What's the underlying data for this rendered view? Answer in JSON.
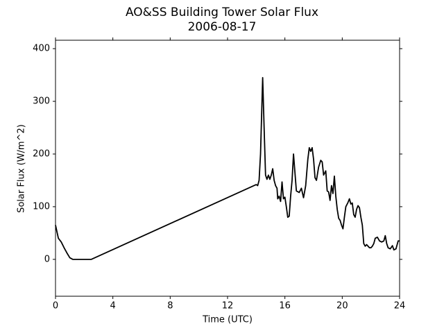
{
  "chart_data": {
    "type": "line",
    "title": "AO&SS Building Tower Solar Flux",
    "subtitle": "2006-08-17",
    "x_label": "Time (UTC)",
    "y_label": "Solar Flux (W/m^2)",
    "xlim": [
      0,
      24
    ],
    "ylim": [
      -70,
      416
    ],
    "xticks": [
      0,
      4,
      8,
      12,
      16,
      20,
      24
    ],
    "yticks": [
      0,
      100,
      200,
      300,
      400
    ],
    "grid": false,
    "x": [
      0,
      0.2,
      0.4,
      0.6,
      0.8,
      1.0,
      1.2,
      1.5,
      2.0,
      2.5,
      14.0,
      14.1,
      14.2,
      14.3,
      14.45,
      14.55,
      14.65,
      14.75,
      14.85,
      14.95,
      15.05,
      15.15,
      15.25,
      15.35,
      15.45,
      15.5,
      15.6,
      15.7,
      15.8,
      15.9,
      16.0,
      16.1,
      16.2,
      16.3,
      16.4,
      16.5,
      16.6,
      16.7,
      16.8,
      17.0,
      17.15,
      17.3,
      17.45,
      17.6,
      17.7,
      17.8,
      17.9,
      18.0,
      18.1,
      18.2,
      18.35,
      18.5,
      18.6,
      18.7,
      18.85,
      18.95,
      19.05,
      19.15,
      19.25,
      19.35,
      19.45,
      19.55,
      19.65,
      19.75,
      19.85,
      19.95,
      20.05,
      20.15,
      20.25,
      20.4,
      20.5,
      20.6,
      20.7,
      20.8,
      20.9,
      21.0,
      21.1,
      21.2,
      21.3,
      21.4,
      21.5,
      21.6,
      21.7,
      21.8,
      21.9,
      22.0,
      22.1,
      22.2,
      22.3,
      22.45,
      22.6,
      22.75,
      22.9,
      23.0,
      23.1,
      23.2,
      23.35,
      23.5,
      23.6,
      23.75,
      23.9,
      24.0
    ],
    "series": [
      {
        "name": "Solar Flux",
        "color": "#000000",
        "values": [
          65,
          40,
          33,
          22,
          12,
          3,
          0,
          0,
          0,
          0,
          142,
          140,
          150,
          200,
          345,
          250,
          160,
          152,
          160,
          152,
          160,
          172,
          150,
          140,
          135,
          115,
          120,
          110,
          147,
          115,
          118,
          100,
          80,
          82,
          120,
          150,
          200,
          165,
          130,
          127,
          135,
          117,
          140,
          190,
          212,
          205,
          212,
          190,
          155,
          150,
          175,
          188,
          185,
          160,
          168,
          130,
          128,
          112,
          140,
          125,
          158,
          120,
          95,
          78,
          74,
          65,
          58,
          80,
          100,
          108,
          115,
          105,
          107,
          85,
          80,
          95,
          102,
          98,
          80,
          65,
          30,
          25,
          28,
          25,
          22,
          22,
          25,
          30,
          40,
          42,
          35,
          33,
          35,
          45,
          30,
          22,
          20,
          26,
          18,
          20,
          35,
          35
        ]
      }
    ]
  }
}
